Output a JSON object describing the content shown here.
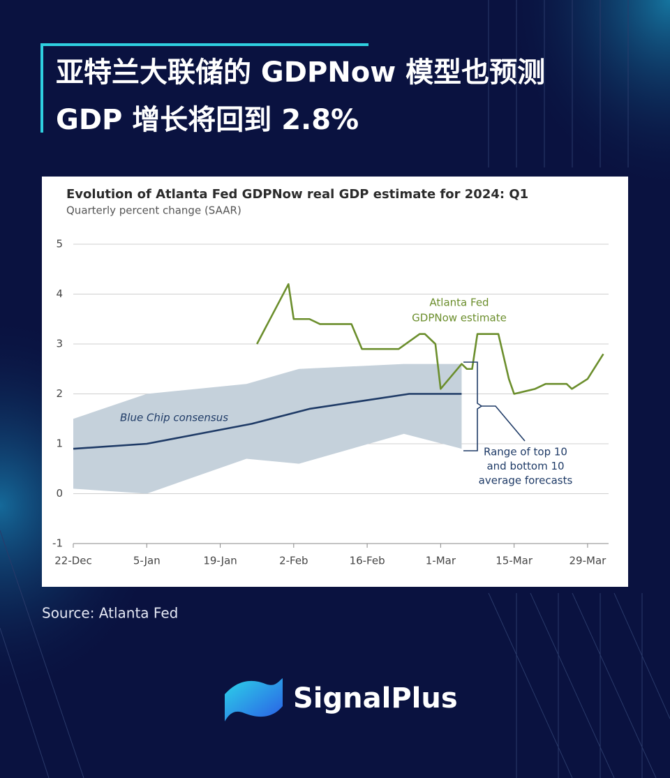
{
  "header": {
    "title": [
      "亚特兰大联储的 GDPNow 模型也预测",
      "GDP 增长将回到 2.8%"
    ]
  },
  "chart_data": {
    "type": "line",
    "title": "Evolution of Atlanta Fed GDPNow real GDP estimate for 2024: Q1",
    "subtitle": "Quarterly percent change (SAAR)",
    "xlim": [
      "22-Dec",
      "2-Apr"
    ],
    "xticks": [
      "22-Dec",
      "5-Jan",
      "19-Jan",
      "2-Feb",
      "16-Feb",
      "1-Mar",
      "15-Mar",
      "29-Mar"
    ],
    "ylim": [
      -1,
      5
    ],
    "yticks": [
      -1,
      0,
      1,
      2,
      3,
      4,
      5
    ],
    "grid": true,
    "series": [
      {
        "color": "#6b8e2c",
        "x": [
          "26-Jan",
          "1-Feb",
          "2-Feb",
          "5-Feb",
          "7-Feb",
          "13-Feb",
          "15-Feb",
          "22-Feb",
          "26-Feb",
          "27-Feb",
          "29-Feb",
          "1-Mar",
          "5-Mar",
          "6-Mar",
          "7-Mar",
          "8-Mar",
          "12-Mar",
          "14-Mar",
          "15-Mar",
          "19-Mar",
          "21-Mar",
          "25-Mar",
          "26-Mar",
          "29-Mar",
          "1-Apr"
        ],
        "values": [
          3.0,
          4.2,
          3.5,
          3.5,
          3.4,
          3.4,
          2.9,
          2.9,
          3.2,
          3.2,
          3.0,
          2.1,
          2.6,
          2.5,
          2.5,
          3.2,
          3.2,
          2.3,
          2.0,
          2.1,
          2.2,
          2.2,
          2.1,
          2.3,
          2.8
        ]
      },
      {
        "color": "#1e3a66",
        "x": [
          "22-Dec",
          "5-Jan",
          "25-Jan",
          "5-Feb",
          "24-Feb",
          "5-Mar"
        ],
        "values": [
          0.9,
          1.0,
          1.4,
          1.7,
          2.0,
          2.0
        ]
      }
    ],
    "band": {
      "color": "#c5d1db",
      "x": [
        "22-Dec",
        "5-Jan",
        "24-Jan",
        "3-Feb",
        "23-Feb",
        "5-Mar"
      ],
      "upper": [
        1.5,
        2.0,
        2.2,
        2.5,
        2.6,
        2.6
      ],
      "lower": [
        0.1,
        0.0,
        0.7,
        0.6,
        1.2,
        0.9
      ]
    },
    "annotations": [
      [
        "Atlanta Fed",
        "GDPNow estimate"
      ],
      [
        "Blue Chip consensus"
      ],
      [
        "Range of top 10",
        "and bottom 10",
        "average forecasts"
      ]
    ]
  },
  "source": "Source: Atlanta Fed",
  "brand": "SignalPlus"
}
